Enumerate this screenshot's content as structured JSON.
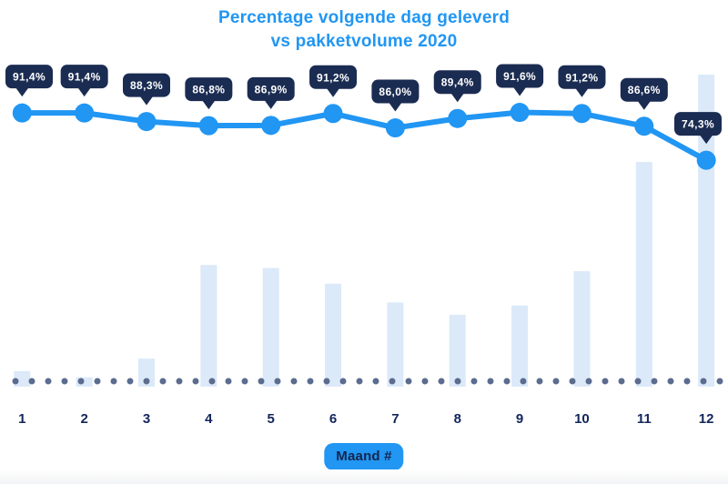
{
  "page": {
    "title_line1": "Percentage volgende dag geleverd",
    "title_line2": "vs pakketvolume 2020",
    "xaxis_label": "Maand #"
  },
  "colors": {
    "accent_blue": "#2196f3",
    "tooltip_navy": "#1b2c52",
    "bar_light_blue": "#dbe9f9",
    "dot_slate": "#5b6c8e",
    "axis_text_navy": "#13265c",
    "tooltip_text_white": "#ffffff"
  },
  "chart_data": {
    "type": "line",
    "title": "Percentage volgende dag geleverd vs pakketvolume 2020",
    "xlabel": "Maand #",
    "ylabel": "",
    "grid": false,
    "legend_position": "none",
    "categories": [
      "1",
      "2",
      "3",
      "4",
      "5",
      "6",
      "7",
      "8",
      "9",
      "10",
      "11",
      "12"
    ],
    "series": [
      {
        "name": "Percentage volgende dag geleverd",
        "type": "line",
        "values": [
          91.4,
          91.4,
          88.3,
          86.8,
          86.9,
          91.2,
          86.0,
          89.4,
          91.6,
          91.2,
          86.6,
          74.3
        ],
        "labels": [
          "91,4%",
          "91,4%",
          "88,3%",
          "86,8%",
          "86,9%",
          "91,2%",
          "86,0%",
          "89,4%",
          "91,6%",
          "91,2%",
          "86,6%",
          "74,3%"
        ]
      },
      {
        "name": "Pakketvolume 2020",
        "type": "bar",
        "values_relative_pct_of_max": [
          5,
          3,
          9,
          39,
          38,
          33,
          27,
          23,
          26,
          37,
          72,
          100
        ]
      }
    ],
    "baseline_dotted": true
  }
}
